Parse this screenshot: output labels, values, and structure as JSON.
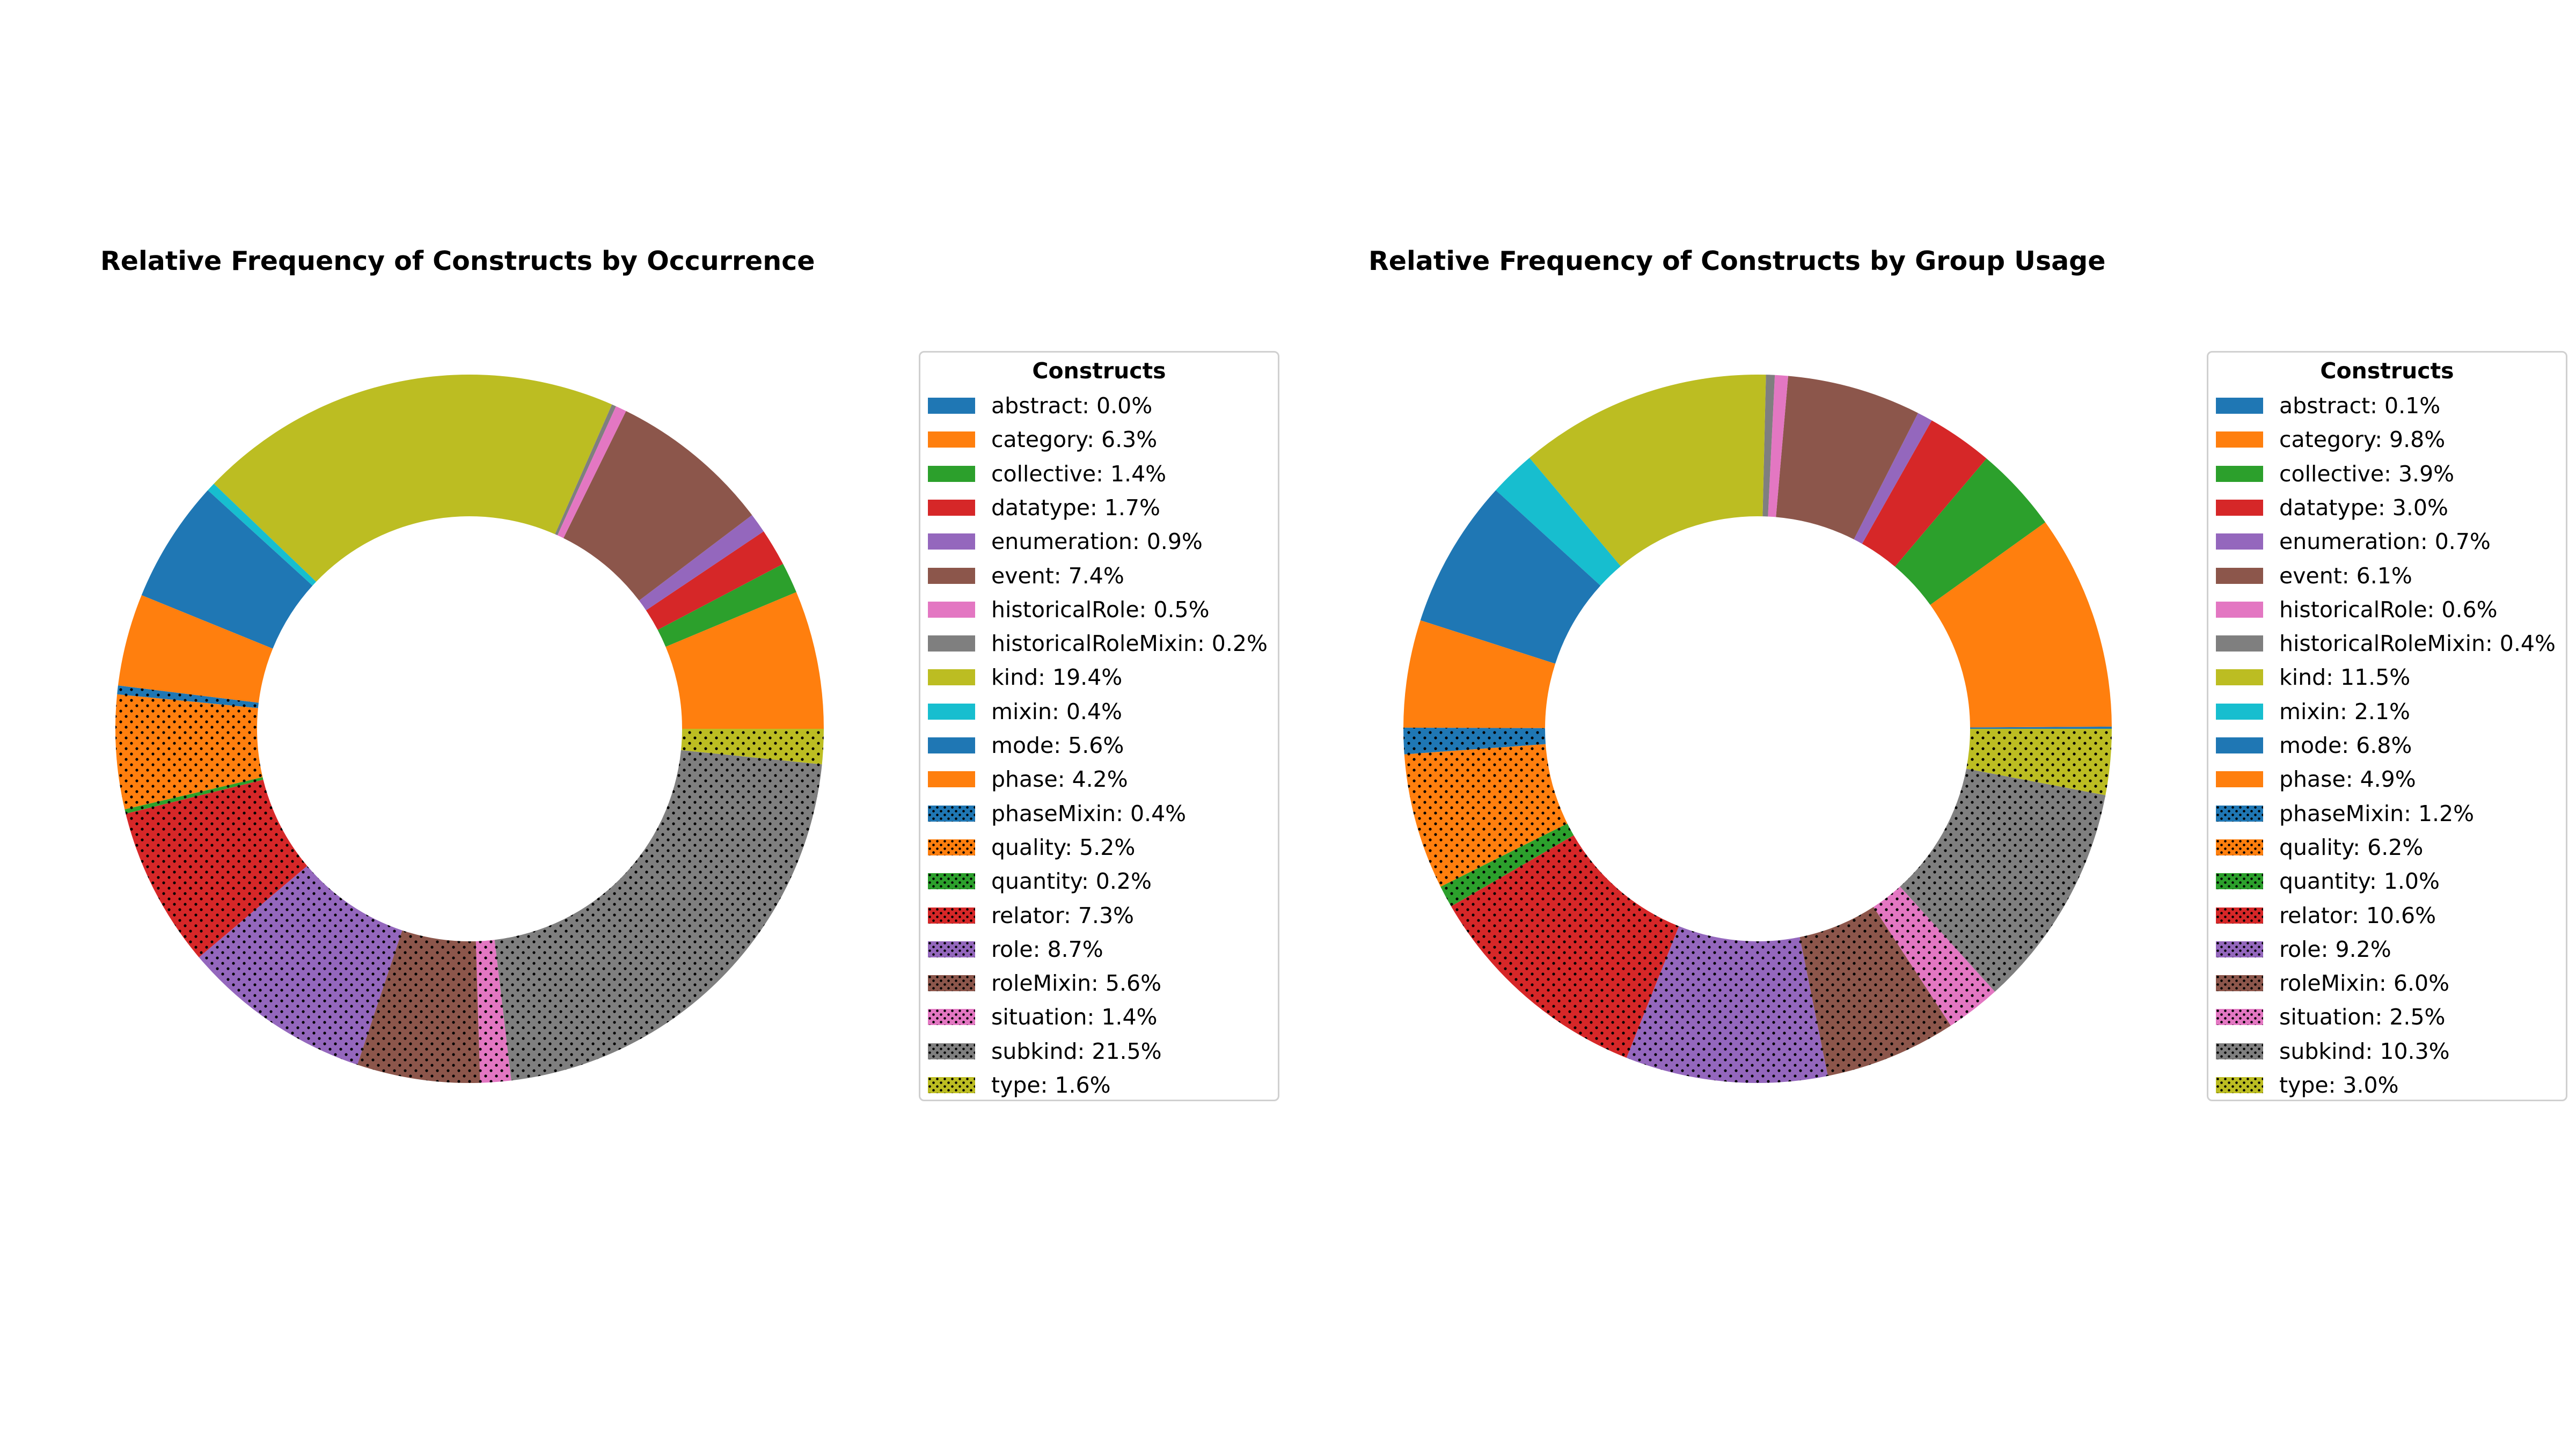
{
  "legend_title": "Constructs",
  "colors": {
    "abstract": "#1f77b4",
    "category": "#ff7f0e",
    "collective": "#2ca02c",
    "datatype": "#d62728",
    "enumeration": "#9467bd",
    "event": "#8c564b",
    "historicalRole": "#e377c2",
    "historicalRoleMixin": "#7f7f7f",
    "kind": "#bcbd22",
    "mixin": "#17becf",
    "mode": "#1f77b4",
    "phase": "#ff7f0e",
    "phaseMixin": "#1f77b4",
    "quality": "#ff7f0e",
    "quantity": "#2ca02c",
    "relator": "#d62728",
    "role": "#9467bd",
    "roleMixin": "#8c564b",
    "situation": "#e377c2",
    "subkind": "#7f7f7f",
    "type": "#bcbd22"
  },
  "dotted": [
    "phaseMixin",
    "quality",
    "quantity",
    "relator",
    "role",
    "roleMixin",
    "situation",
    "subkind",
    "type"
  ],
  "chart_data": [
    {
      "type": "pie",
      "title": "Relative Frequency of Constructs by Occurrence",
      "legend_placement": "right",
      "categories": [
        "abstract",
        "category",
        "collective",
        "datatype",
        "enumeration",
        "event",
        "historicalRole",
        "historicalRoleMixin",
        "kind",
        "mixin",
        "mode",
        "phase",
        "phaseMixin",
        "quality",
        "quantity",
        "relator",
        "role",
        "roleMixin",
        "situation",
        "subkind",
        "type"
      ],
      "values": [
        0.0,
        6.3,
        1.4,
        1.7,
        0.9,
        7.4,
        0.5,
        0.2,
        19.4,
        0.4,
        5.6,
        4.2,
        0.4,
        5.2,
        0.2,
        7.3,
        8.7,
        5.6,
        1.4,
        21.5,
        1.6
      ],
      "legend_labels": [
        "abstract: 0.0%",
        "category: 6.3%",
        "collective: 1.4%",
        "datatype: 1.7%",
        "enumeration: 0.9%",
        "event: 7.4%",
        "historicalRole: 0.5%",
        "historicalRoleMixin: 0.2%",
        "kind: 19.4%",
        "mixin: 0.4%",
        "mode: 5.6%",
        "phase: 4.2%",
        "phaseMixin: 0.4%",
        "quality: 5.2%",
        "quantity: 0.2%",
        "relator: 7.3%",
        "role: 8.7%",
        "roleMixin: 5.6%",
        "situation: 1.4%",
        "subkind: 21.5%",
        "type: 1.6%"
      ]
    },
    {
      "type": "pie",
      "title": "Relative Frequency of Constructs by Group Usage",
      "legend_placement": "right",
      "categories": [
        "abstract",
        "category",
        "collective",
        "datatype",
        "enumeration",
        "event",
        "historicalRole",
        "historicalRoleMixin",
        "kind",
        "mixin",
        "mode",
        "phase",
        "phaseMixin",
        "quality",
        "quantity",
        "relator",
        "role",
        "roleMixin",
        "situation",
        "subkind",
        "type"
      ],
      "values": [
        0.1,
        9.8,
        3.9,
        3.0,
        0.7,
        6.1,
        0.6,
        0.4,
        11.5,
        2.1,
        6.8,
        4.9,
        1.2,
        6.2,
        1.0,
        10.6,
        9.2,
        6.0,
        2.5,
        10.3,
        3.0
      ],
      "legend_labels": [
        "abstract: 0.1%",
        "category: 9.8%",
        "collective: 3.9%",
        "datatype: 3.0%",
        "enumeration: 0.7%",
        "event: 6.1%",
        "historicalRole: 0.6%",
        "historicalRoleMixin: 0.4%",
        "kind: 11.5%",
        "mixin: 2.1%",
        "mode: 6.8%",
        "phase: 4.9%",
        "phaseMixin: 1.2%",
        "quality: 6.2%",
        "quantity: 1.0%",
        "relator: 10.6%",
        "role: 9.2%",
        "roleMixin: 6.0%",
        "situation: 2.5%",
        "subkind: 10.3%",
        "type: 3.0%"
      ]
    }
  ]
}
